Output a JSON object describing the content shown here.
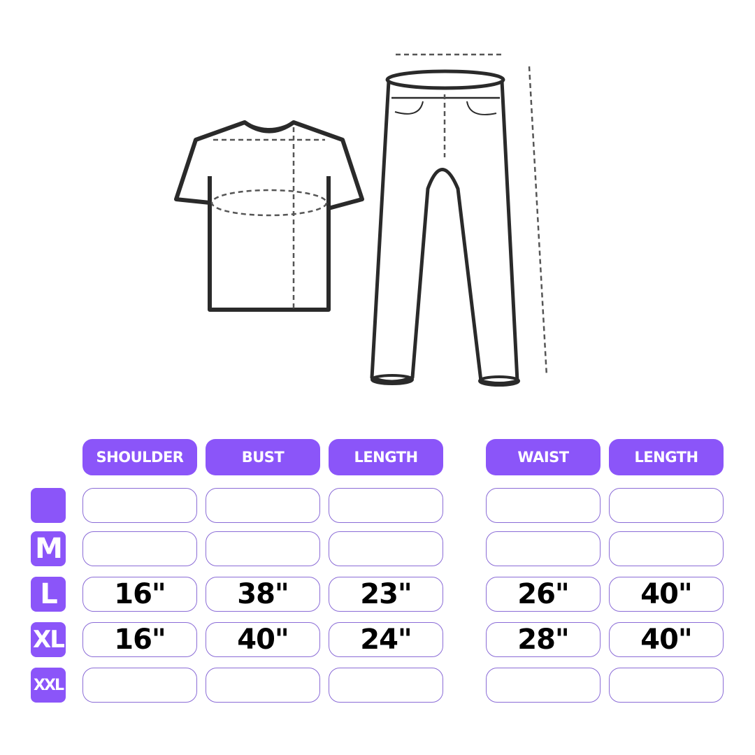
{
  "accent_color": "#8b55f9",
  "illustrations": [
    "t-shirt-measurement",
    "pants-measurement"
  ],
  "table": {
    "headers": [
      "SHOULDER",
      "BUST",
      "LENGTH",
      "WAIST",
      "LENGTH"
    ],
    "rows": [
      {
        "size": "",
        "values": [
          "",
          "",
          "",
          "",
          ""
        ]
      },
      {
        "size": "M",
        "values": [
          "",
          "",
          "",
          "",
          ""
        ]
      },
      {
        "size": "L",
        "values": [
          "16\"",
          "38\"",
          "23\"",
          "26\"",
          "40\""
        ]
      },
      {
        "size": "XL",
        "values": [
          "16\"",
          "40\"",
          "24\"",
          "28\"",
          "40\""
        ]
      },
      {
        "size": "XXL",
        "values": [
          "",
          "",
          "",
          "",
          ""
        ]
      }
    ]
  }
}
